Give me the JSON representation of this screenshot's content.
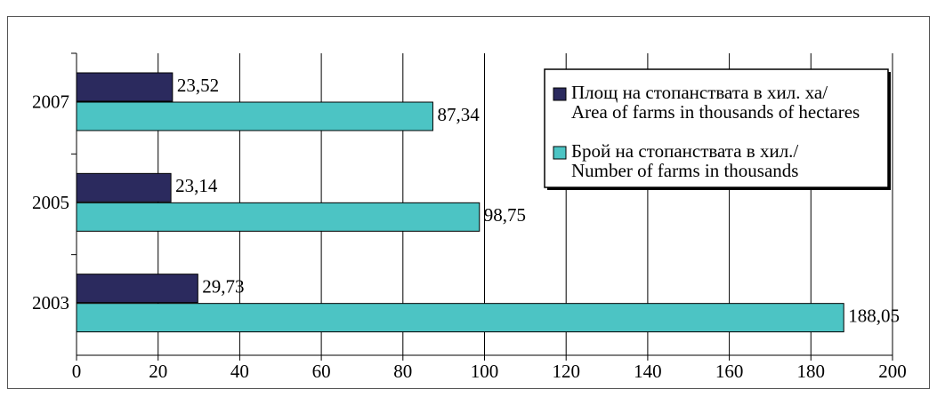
{
  "chart_data": {
    "type": "bar",
    "orientation": "horizontal",
    "categories": [
      "2007",
      "2005",
      "2003"
    ],
    "series": [
      {
        "name": "Площ на стопанствата в хил. ха/ Area of farms in thousands of hectares",
        "color": "#2b2a5e",
        "values": [
          23.52,
          23.14,
          29.73
        ],
        "value_labels": [
          "23,52",
          "23,14",
          "29,73"
        ]
      },
      {
        "name": "Брой на стопанствата в хил./ Number of farms in thousands",
        "color": "#4cc4c4",
        "values": [
          87.34,
          98.75,
          188.05
        ],
        "value_labels": [
          "87,34",
          "98,75",
          "188,05"
        ]
      }
    ],
    "xlim": [
      0,
      200
    ],
    "xticks": [
      0,
      20,
      40,
      60,
      80,
      100,
      120,
      140,
      160,
      180,
      200
    ],
    "grid": true,
    "legend": "upper right"
  }
}
